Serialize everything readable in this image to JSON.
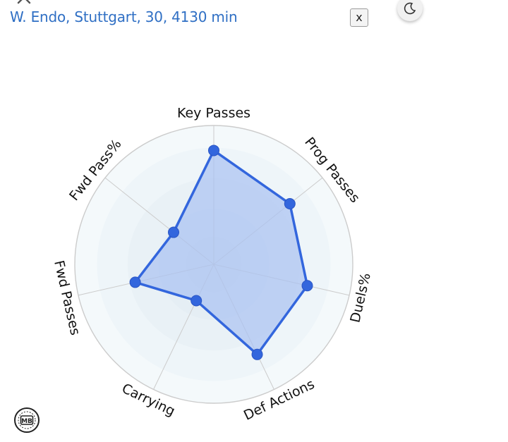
{
  "header": {
    "title": "W. Endo, Stuttgart, 30, 4130 min",
    "close_label": "x"
  },
  "icons": {
    "back": "close-x-icon",
    "theme": "moon-icon",
    "logo": "mb-logo-icon"
  },
  "colors": {
    "title": "#2f6fc4",
    "series_line": "#3366dd",
    "series_fill": "#a9c2f2",
    "ring_fill": "#f3f8fb",
    "grid": "#cccccc"
  },
  "chart_data": {
    "type": "radar",
    "axes": [
      "Key Passes",
      "Prog Passes",
      "Duels%",
      "Def Actions",
      "Carrying",
      "Fwd Passes",
      "Fwd Pass%"
    ],
    "values": [
      82,
      70,
      69,
      72,
      29,
      58,
      37
    ],
    "range": [
      0,
      100
    ],
    "grid": true
  },
  "logo": {
    "text": "MB"
  }
}
